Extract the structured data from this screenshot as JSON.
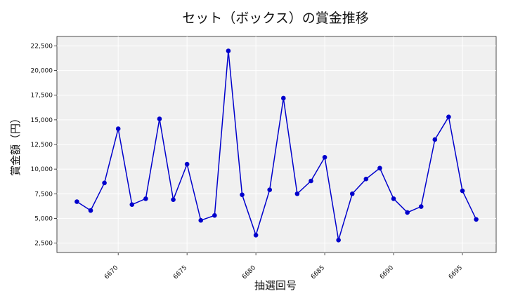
{
  "chart_data": {
    "type": "line",
    "title": "セット（ボックス）の賞金推移",
    "xlabel": "抽選回号",
    "ylabel": "賞金額（円）",
    "x": [
      6667,
      6668,
      6669,
      6670,
      6671,
      6672,
      6673,
      6674,
      6675,
      6676,
      6677,
      6678,
      6679,
      6680,
      6681,
      6682,
      6683,
      6684,
      6685,
      6686,
      6687,
      6688,
      6689,
      6690,
      6691,
      6692,
      6693,
      6694,
      6695,
      6696
    ],
    "series": [
      {
        "values": [
          6700,
          5800,
          8600,
          14100,
          6400,
          7000,
          15100,
          6900,
          10500,
          4800,
          5300,
          22000,
          7400,
          3300,
          7900,
          17200,
          7500,
          8800,
          11200,
          2800,
          7500,
          9000,
          10100,
          7000,
          5600,
          6200,
          13000,
          15300,
          7800,
          4900
        ],
        "color": "#0000cc"
      }
    ],
    "xticks": [
      6670,
      6675,
      6680,
      6685,
      6690,
      6695
    ],
    "yticks": [
      2500,
      5000,
      7500,
      10000,
      12500,
      15000,
      17500,
      20000,
      22500
    ],
    "xlim": [
      6665.55,
      6697.45
    ],
    "ylim": [
      1540,
      23460
    ],
    "grid": true,
    "plot_background": "#f0f0f0"
  }
}
